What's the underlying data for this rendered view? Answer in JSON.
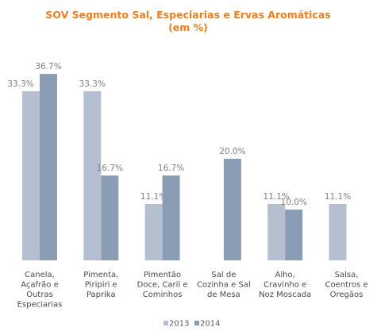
{
  "chart_data": {
    "type": "bar",
    "title": "SOV Segmento Sal, Especiarias e Ervas Aromáticas",
    "subtitle": "(em %)",
    "categories": [
      [
        "Canela,",
        "Açafrão e",
        "Outras",
        "Especiarias"
      ],
      [
        "Pimenta,",
        "Piripiri e",
        "Paprika"
      ],
      [
        "Pimentão",
        "Doce, Caril e",
        "Cominhos"
      ],
      [
        "Sal de",
        "Cozinha e Sal",
        "de Mesa"
      ],
      [
        "Alho,",
        "Cravinho e",
        "Noz Moscada"
      ],
      [
        "Salsa,",
        "Coentros e",
        "Oregãos"
      ]
    ],
    "series": [
      {
        "name": "2013",
        "color": "#b4bfcf",
        "values": [
          33.3,
          33.3,
          11.1,
          null,
          11.1,
          11.1
        ],
        "labels": [
          "33.3%",
          "33.3%",
          "11.1%",
          "",
          "11.1%",
          "11.1%"
        ]
      },
      {
        "name": "2014",
        "color": "#8a9db5",
        "values": [
          36.7,
          16.7,
          16.7,
          20.0,
          10.0,
          null
        ],
        "labels": [
          "36.7%",
          "16.7%",
          "16.7%",
          "20.0%",
          "10.0%",
          ""
        ]
      }
    ],
    "ylim": [
      0,
      40
    ],
    "grid": false,
    "legend_position": "bottom"
  }
}
